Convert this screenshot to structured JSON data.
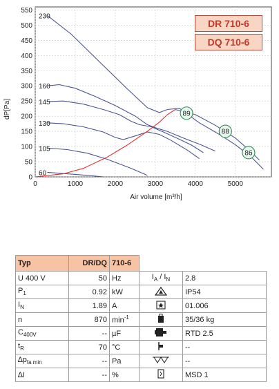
{
  "chart_data": {
    "type": "line",
    "xlabel": "Air volume [m³/h]",
    "ylabel": "dP[Pa]",
    "xlim": [
      0,
      5900
    ],
    "ylim": [
      0,
      560
    ],
    "x_ticks": [
      0,
      1000,
      2000,
      3000,
      4000,
      5000
    ],
    "y_ticks": [
      0,
      50,
      100,
      150,
      200,
      250,
      300,
      350,
      400,
      450,
      500,
      550
    ],
    "grid": true,
    "series": [
      {
        "name": "230",
        "points": [
          [
            300,
            532
          ],
          [
            900,
            470
          ],
          [
            1600,
            380
          ],
          [
            2300,
            290
          ],
          [
            2800,
            228
          ],
          [
            3100,
            212
          ],
          [
            3300,
            222
          ],
          [
            3600,
            226
          ],
          [
            4100,
            178
          ],
          [
            4600,
            140
          ],
          [
            5000,
            106
          ],
          [
            5400,
            65
          ],
          [
            5700,
            25
          ]
        ]
      },
      {
        "name": "160",
        "points": [
          [
            300,
            300
          ],
          [
            600,
            304
          ],
          [
            1000,
            292
          ],
          [
            1500,
            265
          ],
          [
            2000,
            235
          ],
          [
            2500,
            200
          ],
          [
            2800,
            172
          ],
          [
            3000,
            162
          ],
          [
            3300,
            150
          ],
          [
            3700,
            128
          ],
          [
            4100,
            108
          ],
          [
            4500,
            85
          ]
        ]
      },
      {
        "name": "145",
        "points": [
          [
            300,
            248
          ],
          [
            700,
            250
          ],
          [
            1200,
            240
          ],
          [
            1700,
            222
          ],
          [
            2100,
            205
          ],
          [
            2400,
            183
          ],
          [
            2600,
            172
          ],
          [
            2900,
            165
          ],
          [
            3200,
            148
          ],
          [
            3500,
            130
          ],
          [
            3900,
            105
          ],
          [
            4200,
            80
          ]
        ]
      },
      {
        "name": "130",
        "points": [
          [
            300,
            178
          ],
          [
            700,
            175
          ],
          [
            1200,
            165
          ],
          [
            1700,
            148
          ],
          [
            2000,
            130
          ],
          [
            2200,
            123
          ],
          [
            2500,
            135
          ],
          [
            2800,
            148
          ],
          [
            3100,
            140
          ],
          [
            3400,
            120
          ],
          [
            3800,
            88
          ],
          [
            4100,
            60
          ]
        ]
      },
      {
        "name": "105",
        "points": [
          [
            300,
            95
          ],
          [
            800,
            90
          ],
          [
            1300,
            78
          ],
          [
            1800,
            58
          ],
          [
            2400,
            28
          ],
          [
            2800,
            5
          ]
        ]
      },
      {
        "name": "60",
        "points": [
          [
            300,
            15
          ],
          [
            800,
            10
          ],
          [
            1300,
            5
          ],
          [
            1700,
            0
          ]
        ]
      }
    ],
    "system_curve": {
      "points": [
        [
          0,
          0
        ],
        [
          700,
          10
        ],
        [
          1200,
          28
        ],
        [
          1800,
          65
        ],
        [
          2300,
          105
        ],
        [
          2800,
          150
        ],
        [
          3100,
          180
        ],
        [
          3300,
          205
        ],
        [
          3500,
          222
        ]
      ]
    },
    "efficiency_line": {
      "points": [
        [
          3500,
          222
        ],
        [
          4000,
          205
        ],
        [
          4500,
          170
        ],
        [
          5000,
          128
        ],
        [
          5400,
          82
        ],
        [
          5600,
          55
        ]
      ]
    },
    "efficiency_markers": [
      {
        "label": "89",
        "x": 3780,
        "y": 210
      },
      {
        "label": "88",
        "x": 4750,
        "y": 150
      },
      {
        "label": "86",
        "x": 5330,
        "y": 80
      }
    ],
    "curve_labels": [
      "230",
      "160",
      "145",
      "130",
      "105",
      "60"
    ]
  },
  "models": [
    "DR 710-6",
    "DQ 710-6"
  ],
  "spec": {
    "header": {
      "c1": "Typ",
      "c2": "DR/DQ",
      "c3": "710-6"
    },
    "rows": [
      {
        "name": "U",
        "sub_pre": "400",
        "sub_post": "V",
        "value": "50",
        "unit": "Hz",
        "icon": "current-ratio-icon",
        "label_main": "I",
        "label_sub": "A",
        "label_sep": " / I",
        "label_sub2": "N",
        "right": "2.8"
      },
      {
        "name": "P",
        "sub": "1",
        "value": "0.92",
        "unit": "kW",
        "icon": "protection-triangle-icon",
        "right": "IP54"
      },
      {
        "name": "I",
        "sub": "N",
        "value": "1.89",
        "unit": "A",
        "icon": "star-box-icon",
        "right": "01.006"
      },
      {
        "name": "n",
        "value": "870",
        "unit": "min",
        "unit_sup": "-1",
        "icon": "weight-icon",
        "right": "35/36 kg"
      },
      {
        "name": "C",
        "sub": "400V",
        "value": "--",
        "unit": "µF",
        "icon": "motor-icon",
        "right": "RTD 2.5"
      },
      {
        "name": "t",
        "sub": "R",
        "value": "70",
        "unit": "°C",
        "icon": "thermal-icon",
        "right": "--"
      },
      {
        "name": "∆p",
        "sub": "fa min",
        "value": "--",
        "unit": "Pa",
        "icon": "diaphragm-icon",
        "right": "--"
      },
      {
        "name": "∆I",
        "value": "--",
        "unit": "%",
        "icon": "connection-icon",
        "right": "MSD 1"
      }
    ]
  }
}
